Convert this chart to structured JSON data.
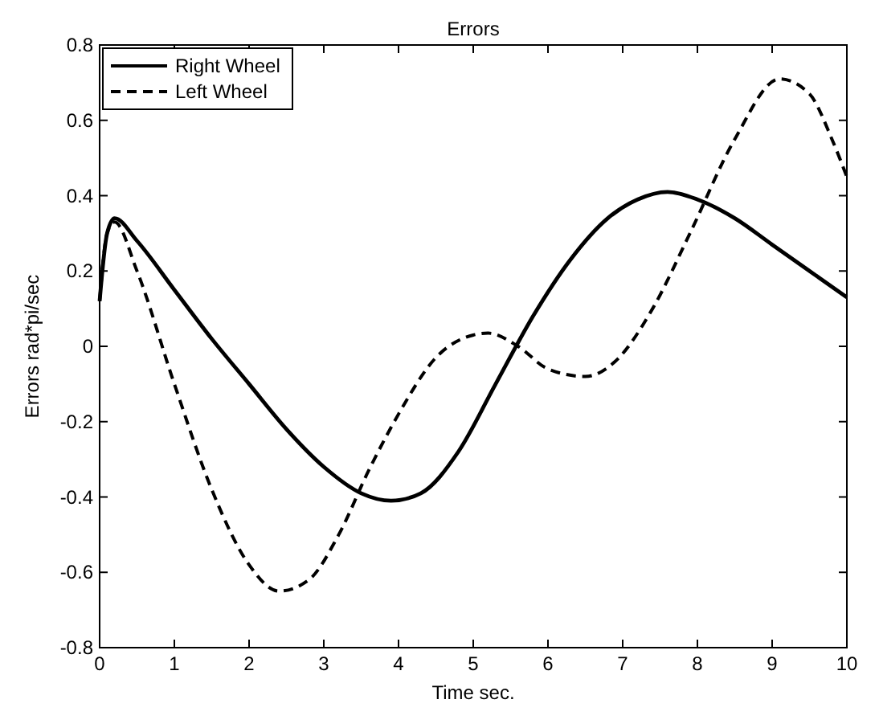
{
  "chart_data": {
    "type": "line",
    "title": "Errors",
    "xlabel": "Time sec.",
    "ylabel": "Errors rad*pi/sec",
    "xlim": [
      0,
      10
    ],
    "ylim": [
      -0.8,
      0.8
    ],
    "xticks": [
      0,
      1,
      2,
      3,
      4,
      5,
      6,
      7,
      8,
      9,
      10
    ],
    "yticks": [
      -0.8,
      -0.6,
      -0.4,
      -0.2,
      0,
      0.2,
      0.4,
      0.6,
      0.8
    ],
    "grid": false,
    "legend": "top left",
    "marker": "none",
    "series": [
      {
        "name": "Right Wheel",
        "color": "#000000",
        "line_style": "solid",
        "x": [
          0,
          0.1,
          0.2,
          0.5,
          1,
          1.5,
          2,
          2.5,
          3,
          3.5,
          3.9,
          4.3,
          4.8,
          5.3,
          5.8,
          6.3,
          6.8,
          7.2,
          7.6,
          8,
          8.5,
          9,
          9.5,
          10
        ],
        "values": [
          0.12,
          0.3,
          0.34,
          0.28,
          0.15,
          0.02,
          -0.1,
          -0.22,
          -0.32,
          -0.39,
          -0.41,
          -0.39,
          -0.28,
          -0.1,
          0.08,
          0.23,
          0.34,
          0.39,
          0.41,
          0.39,
          0.34,
          0.27,
          0.2,
          0.13
        ]
      },
      {
        "name": "Left Wheel",
        "color": "#000000",
        "line_style": "dashed",
        "x": [
          0,
          0.1,
          0.2,
          0.5,
          1,
          1.5,
          2,
          2.4,
          2.8,
          3.2,
          3.6,
          4,
          4.5,
          5,
          5.2,
          5.6,
          6,
          6.5,
          6.9,
          7.4,
          7.9,
          8.5,
          9.1,
          9.5,
          9.8,
          10
        ],
        "values": [
          0.12,
          0.3,
          0.33,
          0.2,
          -0.1,
          -0.38,
          -0.58,
          -0.65,
          -0.62,
          -0.5,
          -0.33,
          -0.18,
          -0.03,
          0.03,
          0.035,
          0,
          -0.06,
          -0.08,
          -0.04,
          0.1,
          0.3,
          0.55,
          0.71,
          0.67,
          0.55,
          0.45
        ]
      }
    ]
  }
}
